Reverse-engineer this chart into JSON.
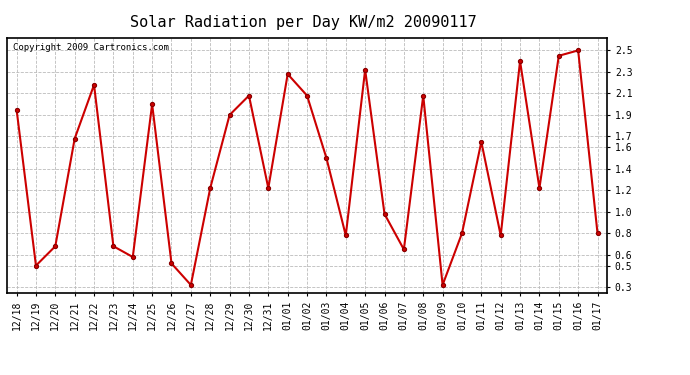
{
  "title": "Solar Radiation per Day KW/m2 20090117",
  "copyright_text": "Copyright 2009 Cartronics.com",
  "dates": [
    "12/18",
    "12/19",
    "12/20",
    "12/21",
    "12/22",
    "12/23",
    "12/24",
    "12/25",
    "12/26",
    "12/27",
    "12/28",
    "12/29",
    "12/30",
    "12/31",
    "01/01",
    "01/02",
    "01/03",
    "01/04",
    "01/05",
    "01/06",
    "01/07",
    "01/08",
    "01/09",
    "01/10",
    "01/11",
    "01/12",
    "01/13",
    "01/14",
    "01/15",
    "01/16",
    "01/17"
  ],
  "values": [
    1.95,
    0.5,
    0.68,
    1.68,
    2.18,
    0.68,
    0.58,
    2.0,
    0.52,
    0.32,
    1.22,
    1.9,
    2.08,
    1.22,
    2.28,
    2.08,
    1.5,
    0.78,
    2.32,
    0.98,
    0.65,
    2.08,
    0.32,
    0.8,
    1.65,
    0.78,
    2.4,
    1.22,
    2.45,
    2.5,
    0.8
  ],
  "line_color": "#cc0000",
  "marker_color": "#cc0000",
  "bg_color": "#ffffff",
  "plot_bg_color": "#ffffff",
  "grid_color": "#bbbbbb",
  "ylim": [
    0.25,
    2.62
  ],
  "yticks": [
    0.3,
    0.5,
    0.6,
    0.8,
    1.0,
    1.2,
    1.4,
    1.6,
    1.7,
    1.9,
    2.1,
    2.3,
    2.5
  ],
  "title_fontsize": 11,
  "tick_fontsize": 7,
  "copyright_fontsize": 6.5
}
